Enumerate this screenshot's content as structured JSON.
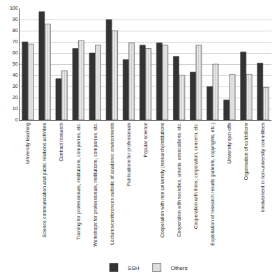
{
  "chart_data": {
    "type": "bar",
    "categories": [
      "University teaching",
      "Science communication and public relations activities",
      "Contract research",
      "Training for professionals, institutions, companies, etc.",
      "Workshops for professionals, institutions, companies, etc.",
      "Lectures/conferences outside of academic environments",
      "Publications for professionals",
      "Popular science",
      "Cooperation with non-university (research)institutions",
      "Cooperation with societies, unions, associations, etc.",
      "Cooperation with firms, corporation, concern, etc.",
      "Exploitation of research results (patents, copyrights, etc.)",
      "University spin-offs",
      "Organisation of exhibitions",
      "Involvement in non-university committees"
    ],
    "series": [
      {
        "name": "SSH",
        "color": "#333333",
        "values": [
          70,
          97,
          37,
          64,
          60,
          90,
          54,
          67,
          69,
          57,
          43,
          30,
          18,
          61,
          51
        ]
      },
      {
        "name": "Others",
        "color": "#e6e6e6",
        "values": [
          68,
          86,
          44,
          71,
          67,
          80,
          69,
          64,
          67,
          40,
          67,
          50,
          41,
          41,
          29
        ]
      }
    ],
    "ylim": [
      0,
      100
    ],
    "yticks": [
      0,
      10,
      20,
      30,
      40,
      50,
      60,
      70,
      80,
      90,
      100
    ],
    "grid": true,
    "legend": "bottom"
  }
}
